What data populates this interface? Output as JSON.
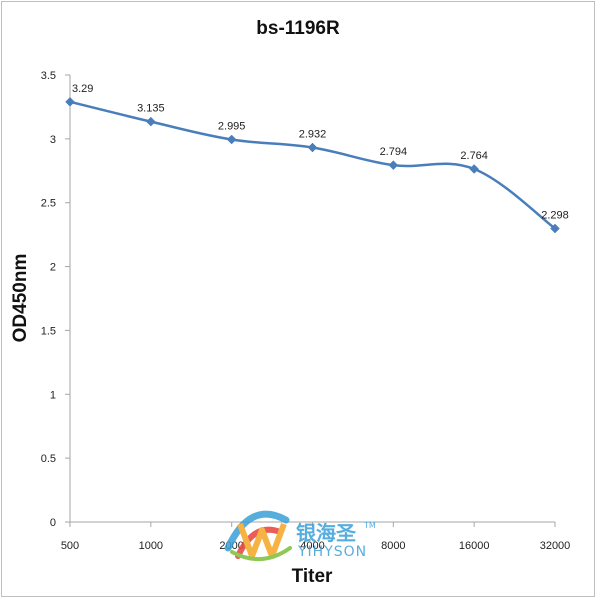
{
  "chart_data": {
    "type": "line",
    "title": "bs-1196R",
    "xlabel": "Titer",
    "ylabel": "OD450nm",
    "categories": [
      "500",
      "1000",
      "2000",
      "4000",
      "8000",
      "16000",
      "32000"
    ],
    "series": [
      {
        "values": [
          3.29,
          3.135,
          2.995,
          2.932,
          2.794,
          2.764,
          2.298
        ],
        "data_labels": [
          "3.29",
          "3.135",
          "2.995",
          "2.932",
          "2.794",
          "2.764",
          "2.298"
        ],
        "color": "#4a7ebb",
        "marker": "diamond",
        "smooth": true
      }
    ],
    "ylim": [
      0,
      3.5
    ],
    "yticks": [
      "0",
      "0.5",
      "1",
      "1.5",
      "2",
      "2.5",
      "3",
      "3.5"
    ],
    "grid": false,
    "legend": "none"
  },
  "watermark": {
    "cn_text": "银海圣",
    "en_text": "YIHYSON",
    "tm": "TM",
    "colors": [
      "#3aa0d8",
      "#e8433b",
      "#f5a623",
      "#7bbf3a"
    ]
  }
}
